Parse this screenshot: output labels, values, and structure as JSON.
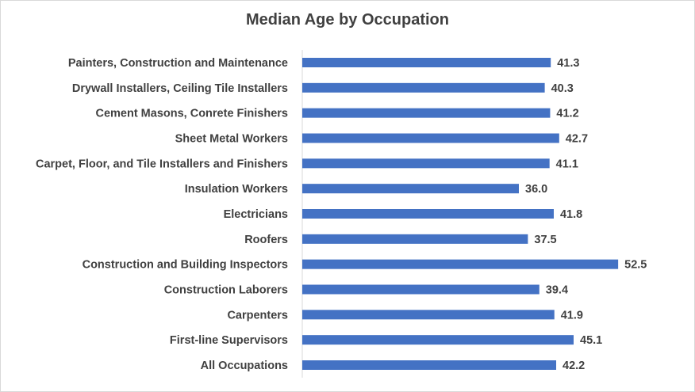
{
  "chart_data": {
    "type": "bar",
    "orientation": "horizontal",
    "title": "Median Age by Occupation",
    "xlabel": "",
    "ylabel": "",
    "xlim": [
      0,
      60
    ],
    "grid": false,
    "legend": "none",
    "bar_color": "#4472c4",
    "categories": [
      "Painters, Construction and Maintenance",
      "Drywall Installers, Ceiling Tile Installers",
      "Cement Masons, Conrete Finishers",
      "Sheet Metal Workers",
      "Carpet, Floor, and Tile Installers and Finishers",
      "Insulation Workers",
      "Electricians",
      "Roofers",
      "Construction and Building Inspectors",
      "Construction Laborers",
      "Carpenters",
      "First-line Supervisors",
      "All Occupations"
    ],
    "values": [
      41.3,
      40.3,
      41.2,
      42.7,
      41.1,
      36.0,
      41.8,
      37.5,
      52.5,
      39.4,
      41.9,
      45.1,
      42.2
    ],
    "value_labels": [
      "41.3",
      "40.3",
      "41.2",
      "42.7",
      "41.1",
      "36.0",
      "41.8",
      "37.5",
      "52.5",
      "39.4",
      "41.9",
      "45.1",
      "42.2"
    ]
  }
}
